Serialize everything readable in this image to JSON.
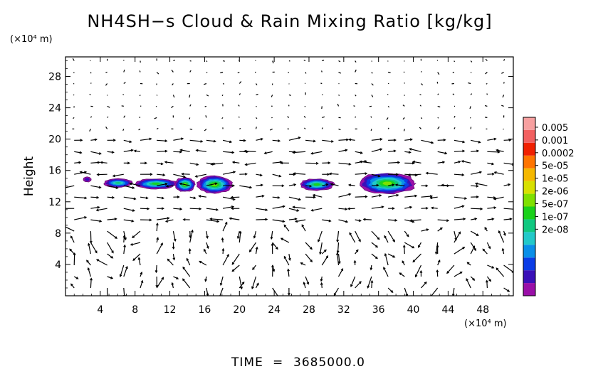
{
  "chart_data": {
    "type": "heatmap",
    "title": "NH4SH−s Cloud & Rain Mixing Ratio [kg/kg]",
    "xlabel": "",
    "ylabel": "Height",
    "x_unit": "(×10⁴ m)",
    "y_unit": "(×10⁴ m)",
    "xlim": [
      0,
      51.5
    ],
    "ylim": [
      0,
      30.5
    ],
    "x_ticks": [
      "4",
      "8",
      "12",
      "16",
      "20",
      "24",
      "28",
      "32",
      "36",
      "40",
      "44",
      "48"
    ],
    "y_ticks": [
      "4",
      "8",
      "12",
      "16",
      "20",
      "24",
      "28"
    ],
    "x_tick_values": [
      4,
      8,
      12,
      16,
      20,
      24,
      28,
      32,
      36,
      40,
      44,
      48
    ],
    "y_tick_values": [
      4,
      8,
      12,
      16,
      20,
      24,
      28
    ],
    "colorbar": {
      "scale": "log",
      "labels": [
        "0.005",
        "0.001",
        "0.0002",
        "5e-05",
        "1e-05",
        "2e-06",
        "5e-07",
        "1e-07",
        "2e-08"
      ],
      "colors": [
        "#9a0fa8",
        "#3a10b8",
        "#0b3ce6",
        "#0a8fe8",
        "#22c9c9",
        "#10c880",
        "#1ad11a",
        "#7fe000",
        "#d8e000",
        "#f5b800",
        "#ff7400",
        "#f02000",
        "#f26060",
        "#f7a0a0"
      ]
    },
    "cloud_regions": [
      {
        "x_range": [
          2.0,
          3.0
        ],
        "y_range": [
          14.5,
          15.2
        ],
        "peak": "2e-08"
      },
      {
        "x_range": [
          4.3,
          7.8
        ],
        "y_range": [
          13.8,
          15.0
        ],
        "peak": "1e-06"
      },
      {
        "x_range": [
          7.8,
          13.0
        ],
        "y_range": [
          13.6,
          15.0
        ],
        "peak": "5e-06"
      },
      {
        "x_range": [
          12.5,
          15.0
        ],
        "y_range": [
          13.2,
          15.2
        ],
        "peak": "1e-05"
      },
      {
        "x_range": [
          15.0,
          19.3
        ],
        "y_range": [
          13.0,
          15.4
        ],
        "peak": "1e-05"
      },
      {
        "x_range": [
          26.8,
          31.0
        ],
        "y_range": [
          13.4,
          15.0
        ],
        "peak": "5e-06"
      },
      {
        "x_range": [
          33.5,
          40.5
        ],
        "y_range": [
          12.9,
          15.8
        ],
        "peak": "1e-05"
      }
    ],
    "vectors": "wind vectors (u, w) on regular grid"
  },
  "footer": {
    "time_label": "TIME",
    "time_eq": "=",
    "time_value": "3685000.0"
  }
}
